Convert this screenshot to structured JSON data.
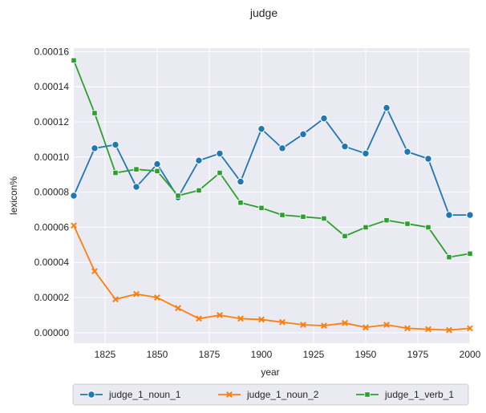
{
  "chart_data": {
    "type": "line",
    "title": "judge",
    "xlabel": "year",
    "ylabel": "lexicon%",
    "xlim": [
      1810,
      2000
    ],
    "ylim": [
      -6e-06,
      0.000162
    ],
    "xticks": [
      1825,
      1850,
      1875,
      1900,
      1925,
      1950,
      1975,
      2000
    ],
    "yticks": [
      0,
      2e-05,
      4e-05,
      6e-05,
      8e-05,
      0.0001,
      0.00012,
      0.00014,
      0.00016
    ],
    "ytick_labels": [
      "0.00000",
      "0.00002",
      "0.00004",
      "0.00006",
      "0.00008",
      "0.00010",
      "0.00012",
      "0.00014",
      "0.00016"
    ],
    "grid": true,
    "legend_position": "bottom-center",
    "x": [
      1810,
      1820,
      1830,
      1840,
      1850,
      1860,
      1870,
      1880,
      1890,
      1900,
      1910,
      1920,
      1930,
      1940,
      1950,
      1960,
      1970,
      1980,
      1990,
      2000
    ],
    "series": [
      {
        "name": "judge_1_noun_1",
        "color": "#1f77b4",
        "marker": "circle",
        "values": [
          7.8e-05,
          0.000105,
          0.000107,
          8.3e-05,
          9.6e-05,
          7.7e-05,
          9.8e-05,
          0.000102,
          8.6e-05,
          0.000116,
          0.000105,
          0.000113,
          0.000122,
          0.000106,
          0.000102,
          0.000128,
          0.000103,
          9.9e-05,
          6.7e-05,
          6.7e-05
        ]
      },
      {
        "name": "judge_1_noun_2",
        "color": "#ff7f0e",
        "marker": "x",
        "values": [
          6.1e-05,
          3.5e-05,
          1.9e-05,
          2.2e-05,
          2e-05,
          1.4e-05,
          8e-06,
          1e-05,
          8e-06,
          7.5e-06,
          6e-06,
          4.5e-06,
          4e-06,
          5.5e-06,
          3e-06,
          4.5e-06,
          2.5e-06,
          2e-06,
          1.5e-06,
          2.5e-06
        ]
      },
      {
        "name": "judge_1_verb_1",
        "color": "#2ca02c",
        "marker": "square",
        "values": [
          0.000155,
          0.000125,
          9.1e-05,
          9.3e-05,
          9.2e-05,
          7.8e-05,
          8.1e-05,
          9.1e-05,
          7.4e-05,
          7.1e-05,
          6.7e-05,
          6.6e-05,
          6.5e-05,
          5.5e-05,
          6e-05,
          6.4e-05,
          6.2e-05,
          6e-05,
          4.3e-05,
          4.5e-05
        ]
      }
    ]
  }
}
